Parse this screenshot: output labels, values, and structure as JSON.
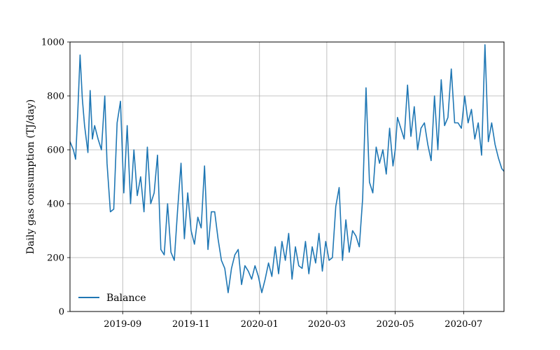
{
  "chart_data": {
    "type": "line",
    "title": "",
    "xlabel": "",
    "ylabel": "Daily gas consumption (TJ/day)",
    "xlim": [
      "2019-07-16",
      "2020-08-06"
    ],
    "ylim": [
      0,
      1000
    ],
    "yticks": [
      0,
      200,
      400,
      600,
      800,
      1000
    ],
    "xticks": [
      {
        "date": "2019-09-01",
        "label": "2019-09"
      },
      {
        "date": "2019-11-01",
        "label": "2019-11"
      },
      {
        "date": "2020-01-01",
        "label": "2020-01"
      },
      {
        "date": "2020-03-01",
        "label": "2020-03"
      },
      {
        "date": "2020-05-01",
        "label": "2020-05"
      },
      {
        "date": "2020-07-01",
        "label": "2020-07"
      }
    ],
    "grid": true,
    "legend": {
      "position": "lower-left",
      "entries": [
        "Balance"
      ]
    },
    "color": "#1f77b4",
    "series": [
      {
        "name": "Balance",
        "x": [
          "2019-07-16",
          "2019-07-19",
          "2019-07-21",
          "2019-07-23",
          "2019-07-25",
          "2019-07-27",
          "2019-07-29",
          "2019-08-01",
          "2019-08-03",
          "2019-08-05",
          "2019-08-07",
          "2019-08-10",
          "2019-08-13",
          "2019-08-16",
          "2019-08-18",
          "2019-08-21",
          "2019-08-24",
          "2019-08-27",
          "2019-08-30",
          "2019-09-02",
          "2019-09-05",
          "2019-09-08",
          "2019-09-11",
          "2019-09-14",
          "2019-09-17",
          "2019-09-20",
          "2019-09-23",
          "2019-09-26",
          "2019-09-29",
          "2019-10-02",
          "2019-10-05",
          "2019-10-08",
          "2019-10-11",
          "2019-10-14",
          "2019-10-17",
          "2019-10-20",
          "2019-10-23",
          "2019-10-26",
          "2019-10-29",
          "2019-11-01",
          "2019-11-04",
          "2019-11-07",
          "2019-11-10",
          "2019-11-13",
          "2019-11-16",
          "2019-11-19",
          "2019-11-22",
          "2019-11-25",
          "2019-11-28",
          "2019-12-01",
          "2019-12-04",
          "2019-12-07",
          "2019-12-10",
          "2019-12-13",
          "2019-12-16",
          "2019-12-19",
          "2019-12-22",
          "2019-12-25",
          "2019-12-28",
          "2019-12-31",
          "2020-01-03",
          "2020-01-06",
          "2020-01-09",
          "2020-01-12",
          "2020-01-15",
          "2020-01-18",
          "2020-01-21",
          "2020-01-24",
          "2020-01-27",
          "2020-01-30",
          "2020-02-02",
          "2020-02-05",
          "2020-02-08",
          "2020-02-11",
          "2020-02-14",
          "2020-02-17",
          "2020-02-20",
          "2020-02-23",
          "2020-02-26",
          "2020-02-29",
          "2020-03-03",
          "2020-03-06",
          "2020-03-09",
          "2020-03-12",
          "2020-03-15",
          "2020-03-18",
          "2020-03-21",
          "2020-03-24",
          "2020-03-27",
          "2020-03-30",
          "2020-04-02",
          "2020-04-05",
          "2020-04-08",
          "2020-04-11",
          "2020-04-14",
          "2020-04-17",
          "2020-04-20",
          "2020-04-23",
          "2020-04-26",
          "2020-04-29",
          "2020-05-01",
          "2020-05-03",
          "2020-05-06",
          "2020-05-09",
          "2020-05-12",
          "2020-05-15",
          "2020-05-18",
          "2020-05-21",
          "2020-05-24",
          "2020-05-27",
          "2020-05-30",
          "2020-06-02",
          "2020-06-05",
          "2020-06-08",
          "2020-06-11",
          "2020-06-14",
          "2020-06-17",
          "2020-06-20",
          "2020-06-23",
          "2020-06-26",
          "2020-06-29",
          "2020-07-02",
          "2020-07-05",
          "2020-07-08",
          "2020-07-11",
          "2020-07-14",
          "2020-07-17",
          "2020-07-20",
          "2020-07-23",
          "2020-07-26",
          "2020-07-29",
          "2020-08-01",
          "2020-08-04",
          "2020-08-06"
        ],
        "values": [
          630,
          600,
          565,
          745,
          952,
          790,
          690,
          590,
          820,
          640,
          690,
          640,
          600,
          800,
          550,
          370,
          380,
          700,
          780,
          440,
          690,
          400,
          600,
          430,
          500,
          370,
          610,
          400,
          440,
          580,
          230,
          210,
          400,
          220,
          190,
          380,
          550,
          270,
          440,
          300,
          250,
          350,
          310,
          540,
          230,
          370,
          370,
          270,
          190,
          160,
          70,
          160,
          210,
          230,
          100,
          170,
          150,
          120,
          170,
          130,
          70,
          120,
          180,
          130,
          240,
          140,
          260,
          190,
          290,
          120,
          240,
          170,
          160,
          260,
          140,
          240,
          180,
          290,
          150,
          260,
          190,
          200,
          390,
          460,
          190,
          340,
          220,
          300,
          280,
          240,
          420,
          830,
          480,
          440,
          610,
          550,
          600,
          510,
          680,
          540,
          600,
          720,
          680,
          640,
          840,
          650,
          760,
          600,
          680,
          700,
          620,
          560,
          800,
          600,
          860,
          690,
          720,
          900,
          700,
          700,
          680,
          800,
          700,
          750,
          640,
          700,
          580,
          990,
          630,
          700,
          620,
          570,
          530,
          520
        ]
      }
    ]
  }
}
